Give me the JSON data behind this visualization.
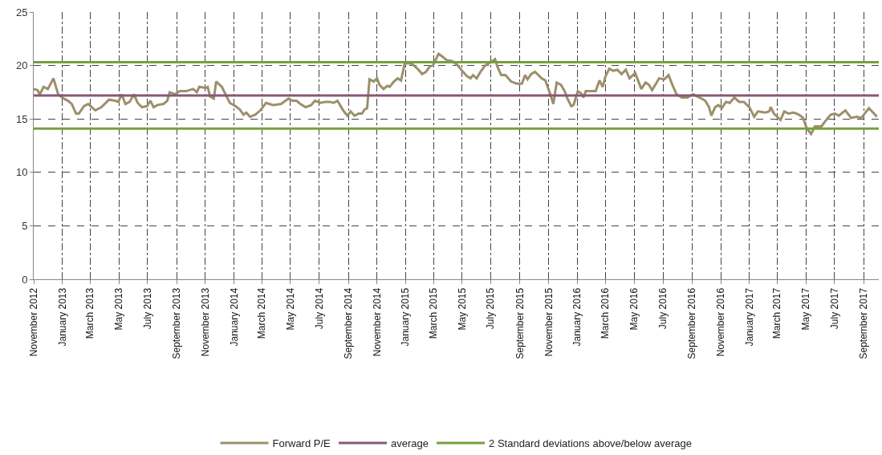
{
  "chart_data": {
    "type": "line",
    "x": [
      "2012-11-01",
      "2012-11-09",
      "2012-11-14",
      "2012-11-22",
      "2012-12-01",
      "2012-12-13",
      "2012-12-23",
      "2013-01-04",
      "2013-01-13",
      "2013-01-21",
      "2013-01-30",
      "2013-02-05",
      "2013-02-16",
      "2013-02-25",
      "2013-03-12",
      "2013-03-25",
      "2013-04-10",
      "2013-04-23",
      "2013-04-30",
      "2013-05-07",
      "2013-05-15",
      "2013-05-24",
      "2013-06-02",
      "2013-06-10",
      "2013-06-19",
      "2013-06-30",
      "2013-07-07",
      "2013-07-14",
      "2013-07-22",
      "2013-08-04",
      "2013-08-12",
      "2013-08-17",
      "2013-08-29",
      "2013-09-07",
      "2013-09-21",
      "2013-10-06",
      "2013-10-14",
      "2013-10-19",
      "2013-11-01",
      "2013-11-06",
      "2013-11-11",
      "2013-11-19",
      "2013-11-24",
      "2013-12-06",
      "2013-12-14",
      "2013-12-23",
      "2014-01-04",
      "2014-01-13",
      "2014-01-21",
      "2014-01-27",
      "2014-02-04",
      "2014-02-15",
      "2014-02-26",
      "2014-03-10",
      "2014-03-25",
      "2014-04-11",
      "2014-04-27",
      "2014-05-05",
      "2014-05-14",
      "2014-05-22",
      "2014-06-02",
      "2014-06-14",
      "2014-06-22",
      "2014-07-04",
      "2014-07-14",
      "2014-07-23",
      "2014-08-01",
      "2014-08-09",
      "2014-08-21",
      "2014-08-30",
      "2014-09-06",
      "2014-09-14",
      "2014-09-23",
      "2014-09-30",
      "2014-10-06",
      "2014-10-11",
      "2014-10-16",
      "2014-10-25",
      "2014-11-01",
      "2014-11-06",
      "2014-11-15",
      "2014-11-23",
      "2014-11-28",
      "2014-12-07",
      "2014-12-15",
      "2014-12-22",
      "2014-12-30",
      "2015-01-13",
      "2015-01-26",
      "2015-02-05",
      "2015-02-13",
      "2015-02-21",
      "2015-02-28",
      "2015-03-12",
      "2015-03-21",
      "2015-03-29",
      "2015-04-10",
      "2015-04-20",
      "2015-05-03",
      "2015-05-11",
      "2015-05-19",
      "2015-05-24",
      "2015-06-01",
      "2015-06-09",
      "2015-06-19",
      "2015-07-01",
      "2015-07-10",
      "2015-07-15",
      "2015-07-23",
      "2015-08-01",
      "2015-08-13",
      "2015-08-25",
      "2015-09-05",
      "2015-09-12",
      "2015-09-17",
      "2015-09-25",
      "2015-10-03",
      "2015-10-08",
      "2015-10-17",
      "2015-10-25",
      "2015-11-03",
      "2015-11-11",
      "2015-11-18",
      "2015-11-27",
      "2015-12-05",
      "2015-12-10",
      "2015-12-19",
      "2015-12-24",
      "2016-01-02",
      "2016-01-09",
      "2016-01-14",
      "2016-01-19",
      "2016-02-01",
      "2016-02-09",
      "2016-02-17",
      "2016-02-24",
      "2016-03-01",
      "2016-03-09",
      "2016-03-17",
      "2016-03-26",
      "2016-04-04",
      "2016-04-13",
      "2016-04-21",
      "2016-05-03",
      "2016-05-16",
      "2016-05-25",
      "2016-06-01",
      "2016-06-08",
      "2016-06-23",
      "2016-07-04",
      "2016-07-13",
      "2016-07-21",
      "2016-07-30",
      "2016-08-10",
      "2016-08-22",
      "2016-09-03",
      "2016-09-17",
      "2016-09-29",
      "2016-10-07",
      "2016-10-12",
      "2016-10-20",
      "2016-10-27",
      "2016-11-03",
      "2016-11-12",
      "2016-11-20",
      "2016-11-30",
      "2016-12-10",
      "2016-12-20",
      "2017-01-01",
      "2017-01-11",
      "2017-01-19",
      "2017-02-04",
      "2017-02-12",
      "2017-02-15",
      "2017-02-22",
      "2017-03-08",
      "2017-03-16",
      "2017-03-25",
      "2017-04-05",
      "2017-04-16",
      "2017-04-25",
      "2017-05-03",
      "2017-05-12",
      "2017-05-20",
      "2017-06-03",
      "2017-06-15",
      "2017-06-23",
      "2017-07-02",
      "2017-07-10",
      "2017-07-24",
      "2017-08-05",
      "2017-08-17",
      "2017-08-27",
      "2017-09-12",
      "2017-09-21",
      "2017-09-29"
    ],
    "series": [
      {
        "name": "Forward P/E",
        "color": "#9c8f6b",
        "values": [
          17.8,
          17.7,
          17.3,
          18.0,
          17.8,
          18.8,
          17.3,
          16.9,
          16.7,
          16.4,
          15.5,
          15.5,
          16.2,
          16.4,
          15.8,
          16.1,
          16.8,
          16.7,
          16.6,
          17.3,
          16.4,
          16.6,
          17.3,
          16.5,
          16.1,
          16.2,
          16.7,
          16.1,
          16.3,
          16.4,
          16.7,
          17.5,
          17.3,
          17.6,
          17.6,
          17.8,
          17.5,
          18.0,
          17.9,
          18.0,
          17.1,
          16.9,
          18.5,
          18.0,
          17.3,
          16.5,
          16.2,
          15.9,
          15.4,
          15.6,
          15.2,
          15.4,
          15.8,
          16.5,
          16.3,
          16.4,
          16.9,
          16.7,
          16.7,
          16.4,
          16.1,
          16.3,
          16.7,
          16.5,
          16.6,
          16.6,
          16.5,
          16.7,
          15.8,
          15.3,
          15.7,
          15.3,
          15.5,
          15.5,
          15.9,
          16.0,
          18.7,
          18.5,
          18.8,
          18.2,
          17.8,
          18.1,
          18.0,
          18.5,
          18.8,
          18.6,
          20.2,
          20.2,
          19.7,
          19.2,
          19.4,
          19.9,
          20.0,
          21.1,
          20.8,
          20.5,
          20.4,
          20.1,
          19.4,
          19.0,
          18.8,
          19.1,
          18.8,
          19.4,
          20.0,
          20.3,
          20.6,
          19.9,
          19.1,
          19.1,
          18.5,
          18.3,
          18.3,
          19.1,
          18.7,
          19.2,
          19.4,
          19.2,
          18.8,
          18.6,
          17.5,
          16.4,
          18.4,
          18.2,
          17.6,
          17.0,
          16.2,
          16.3,
          17.6,
          17.4,
          17.0,
          17.6,
          17.6,
          17.6,
          18.6,
          18.0,
          19.0,
          19.7,
          19.5,
          19.6,
          19.2,
          19.6,
          18.8,
          19.3,
          17.8,
          18.4,
          18.2,
          17.7,
          18.8,
          18.7,
          19.1,
          18.2,
          17.3,
          17.0,
          17.0,
          17.3,
          17.0,
          16.7,
          16.1,
          15.3,
          16.1,
          16.3,
          16.0,
          16.6,
          16.5,
          17.0,
          16.6,
          16.6,
          16.1,
          15.2,
          15.7,
          15.6,
          15.7,
          16.1,
          15.5,
          14.9,
          15.7,
          15.5,
          15.6,
          15.4,
          15.1,
          14.1,
          13.6,
          14.3,
          14.3,
          15.0,
          15.4,
          15.5,
          15.3,
          15.8,
          15.1,
          15.2,
          15.1,
          16.0,
          15.6,
          15.2
        ]
      }
    ],
    "ref_lines": [
      {
        "axis": "y",
        "value": 17.2,
        "label": "average",
        "color": "#875877"
      },
      {
        "axis": "y",
        "value": 20.3,
        "label": "2 Standard deviations above/below average",
        "color": "#76a041"
      },
      {
        "axis": "y",
        "value": 14.1,
        "color": "#76a041"
      }
    ],
    "xlim": [
      "2012-11-01",
      "2017-10-03"
    ],
    "xticks": [
      {
        "value": "2012-11-01",
        "label": "November 2012"
      },
      {
        "value": "2013-01-01",
        "label": "January 2013"
      },
      {
        "value": "2013-03-01",
        "label": "March 2013"
      },
      {
        "value": "2013-05-01",
        "label": "May 2013"
      },
      {
        "value": "2013-07-01",
        "label": "July 2013"
      },
      {
        "value": "2013-09-01",
        "label": "September 2013"
      },
      {
        "value": "2013-11-01",
        "label": "November 2013"
      },
      {
        "value": "2014-01-01",
        "label": "January 2014"
      },
      {
        "value": "2014-03-01",
        "label": "March 2014"
      },
      {
        "value": "2014-05-01",
        "label": "May 2014"
      },
      {
        "value": "2014-07-01",
        "label": "July 2014"
      },
      {
        "value": "2014-09-01",
        "label": "September 2014"
      },
      {
        "value": "2014-11-01",
        "label": "November 2014"
      },
      {
        "value": "2015-01-01",
        "label": "January 2015"
      },
      {
        "value": "2015-03-01",
        "label": "March 2015"
      },
      {
        "value": "2015-05-01",
        "label": "May 2015"
      },
      {
        "value": "2015-07-01",
        "label": "July 2015"
      },
      {
        "value": "2015-09-01",
        "label": "September 2015"
      },
      {
        "value": "2015-11-01",
        "label": "November 2015"
      },
      {
        "value": "2016-01-01",
        "label": "January 2016"
      },
      {
        "value": "2016-03-01",
        "label": "March 2016"
      },
      {
        "value": "2016-05-01",
        "label": "May 2016"
      },
      {
        "value": "2016-07-01",
        "label": "July 2016"
      },
      {
        "value": "2016-09-01",
        "label": "September 2016"
      },
      {
        "value": "2016-11-01",
        "label": "November 2016"
      },
      {
        "value": "2017-01-01",
        "label": "January 2017"
      },
      {
        "value": "2017-03-01",
        "label": "March 2017"
      },
      {
        "value": "2017-05-01",
        "label": "May 2017"
      },
      {
        "value": "2017-07-01",
        "label": "July 2017"
      },
      {
        "value": "2017-09-01",
        "label": "September 2017"
      }
    ],
    "ylim": [
      0,
      25
    ],
    "yticks": [
      0,
      5,
      10,
      15,
      20,
      25
    ],
    "grid": true,
    "legend": "bottom",
    "marker": "none",
    "line_style": "solid"
  }
}
